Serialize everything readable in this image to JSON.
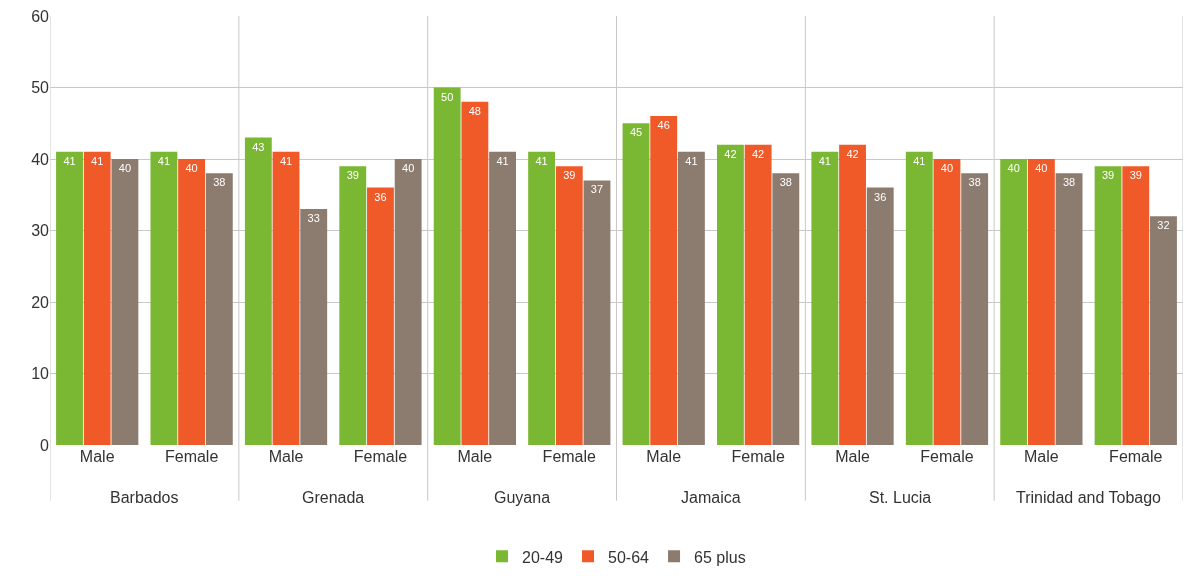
{
  "chart_data": {
    "type": "bar",
    "categories": [
      "Male",
      "Female",
      "Male",
      "Female",
      "Male",
      "Female",
      "Male",
      "Female",
      "Male",
      "Female",
      "Male",
      "Female"
    ],
    "series": [
      {
        "name": "20-49",
        "color": "#7ab733",
        "values": [
          41,
          41,
          43,
          39,
          50,
          41,
          45,
          42,
          41,
          41,
          40,
          39
        ]
      },
      {
        "name": "50-64",
        "color": "#f05a28",
        "values": [
          41,
          40,
          41,
          36,
          48,
          39,
          46,
          42,
          42,
          40,
          40,
          39
        ]
      },
      {
        "name": "65 plus",
        "color": "#8c7b6f",
        "values": [
          40,
          38,
          33,
          40,
          41,
          37,
          41,
          38,
          36,
          38,
          38,
          32
        ]
      }
    ],
    "annotations": [
      "Barbados",
      "Grenada",
      "Guyana",
      "Jamaica",
      "St. Lucia",
      "Trinidad and Tobago"
    ],
    "ylim": [
      0,
      60
    ],
    "yticks": [
      0,
      10,
      20,
      30,
      40,
      50,
      60
    ],
    "grid": "y",
    "legend": "bottom",
    "data_labels": true
  }
}
